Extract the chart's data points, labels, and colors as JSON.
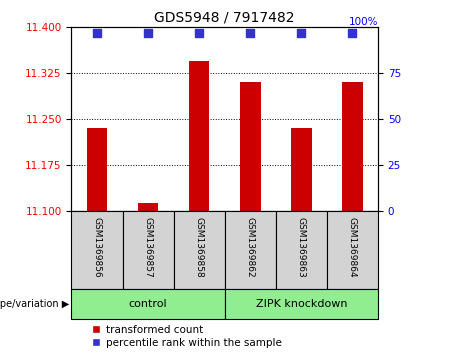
{
  "title": "GDS5948 / 7917482",
  "samples": [
    "GSM1369856",
    "GSM1369857",
    "GSM1369858",
    "GSM1369862",
    "GSM1369863",
    "GSM1369864"
  ],
  "transformed_counts": [
    11.235,
    11.113,
    11.345,
    11.31,
    11.235,
    11.31
  ],
  "percentile_ranks": [
    97,
    97,
    97,
    97,
    97,
    97
  ],
  "ylim_left": [
    11.1,
    11.4
  ],
  "yticks_left": [
    11.1,
    11.175,
    11.25,
    11.325,
    11.4
  ],
  "ylim_right": [
    0,
    100
  ],
  "yticks_right": [
    0,
    25,
    50,
    75
  ],
  "bar_color": "#cc0000",
  "dot_color": "#3333cc",
  "grid_lines": [
    11.175,
    11.25,
    11.325
  ],
  "bar_width": 0.4,
  "dot_size": 28,
  "sample_box_color": "#d3d3d3",
  "group_labels": [
    "control",
    "ZIPK knockdown"
  ],
  "group_ranges": [
    [
      0,
      2
    ],
    [
      3,
      5
    ]
  ],
  "group_color": "#90ee90",
  "legend_labels": [
    "transformed count",
    "percentile rank within the sample"
  ],
  "legend_colors": [
    "#cc0000",
    "#3333cc"
  ],
  "genotype_label": "genotype/variation ▶",
  "title_fontsize": 10,
  "tick_fontsize": 7.5,
  "sample_fontsize": 6.5,
  "group_fontsize": 8,
  "legend_fontsize": 7.5
}
